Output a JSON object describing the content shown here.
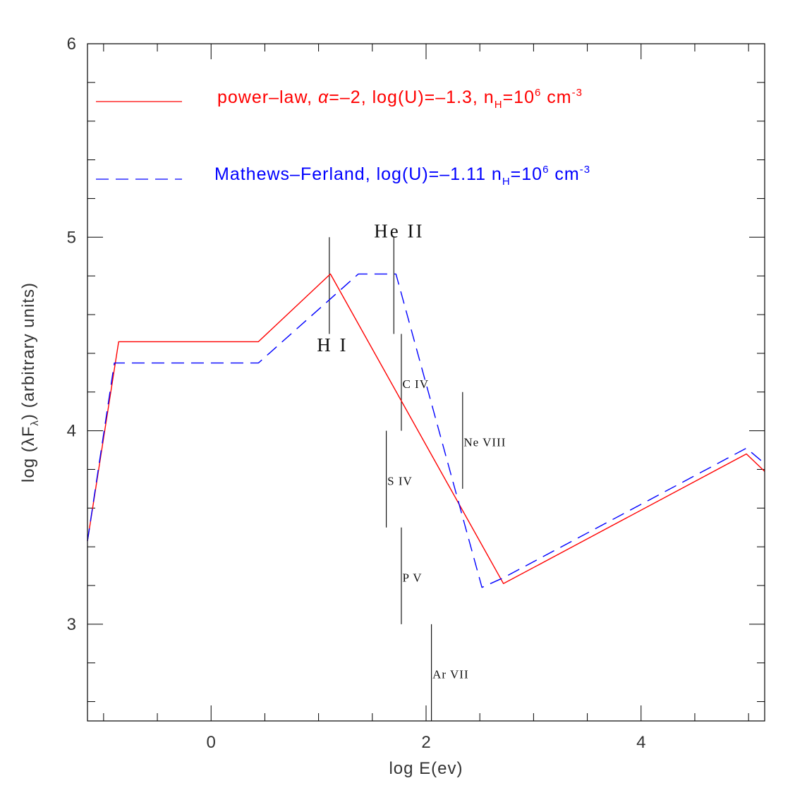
{
  "chart_data": {
    "type": "line",
    "xlabel": "log E(ev)",
    "ylabel": {
      "prefix": "log (",
      "lambda": "λ",
      "F": "F",
      "sub": "λ",
      "suffix": ") (arbitrary units)"
    },
    "xlim": [
      -1.15,
      5.15
    ],
    "ylim": [
      2.5,
      6.0
    ],
    "x_ticks": [
      0,
      2,
      4
    ],
    "y_ticks": [
      3,
      4,
      5,
      6
    ],
    "x_minor_step": 0.5,
    "y_minor_step": 0.2,
    "legend_position": "top",
    "series": [
      {
        "color": "#ff0000",
        "dash": "solid",
        "legend": {
          "text1": "power–law, ",
          "alpha": "α",
          "text2": "=–2,  log(U)=–1.3,  n",
          "sub": "H",
          "text3": "=10",
          "sup1": "6",
          "text4": " cm",
          "sup2": "-3"
        },
        "x": [
          -1.15,
          -0.86,
          0.44,
          1.11,
          2.72,
          4.98,
          5.15
        ],
        "y": [
          3.43,
          4.46,
          4.46,
          4.81,
          3.21,
          3.88,
          3.79
        ]
      },
      {
        "color": "#0000ff",
        "dash": "dashed",
        "legend": {
          "text1": "Mathews–Ferland, log(U)=–1.11  n",
          "sub": "H",
          "text3": "=10",
          "sup1": "6",
          "text4": " cm",
          "sup2": "-3"
        },
        "x": [
          -1.15,
          -0.9,
          0.44,
          1.37,
          1.72,
          2.52,
          2.72,
          4.98,
          5.15
        ],
        "y": [
          3.43,
          4.35,
          4.35,
          4.81,
          4.81,
          3.19,
          3.24,
          3.91,
          3.83
        ]
      }
    ],
    "ion_edges": [
      {
        "label": "H I",
        "x": 1.1,
        "y1": 4.5,
        "y2": 5.0,
        "label_x": 1.13,
        "label_y": 4.41,
        "size": "large",
        "anchor": "middle"
      },
      {
        "label": "He II",
        "x": 1.7,
        "y1": 4.5,
        "y2": 5.0,
        "label_x": 1.75,
        "label_y": 5.0,
        "size": "large",
        "anchor": "middle"
      },
      {
        "label": "C IV",
        "x": 1.77,
        "y1": 4.0,
        "y2": 4.5,
        "label_x": 1.78,
        "label_y": 4.22,
        "size": "small",
        "anchor": "start"
      },
      {
        "label": "S IV",
        "x": 1.63,
        "y1": 3.5,
        "y2": 4.0,
        "label_x": 1.64,
        "label_y": 3.72,
        "size": "small",
        "anchor": "start"
      },
      {
        "label": "Ne VIII",
        "x": 2.34,
        "y1": 3.7,
        "y2": 4.2,
        "label_x": 2.35,
        "label_y": 3.92,
        "size": "small",
        "anchor": "start"
      },
      {
        "label": "P V",
        "x": 1.77,
        "y1": 3.0,
        "y2": 3.5,
        "label_x": 1.78,
        "label_y": 3.22,
        "size": "small",
        "anchor": "start"
      },
      {
        "label": "Ar VII",
        "x": 2.05,
        "y1": 2.5,
        "y2": 3.0,
        "label_x": 2.06,
        "label_y": 2.72,
        "size": "small",
        "anchor": "start"
      }
    ]
  }
}
